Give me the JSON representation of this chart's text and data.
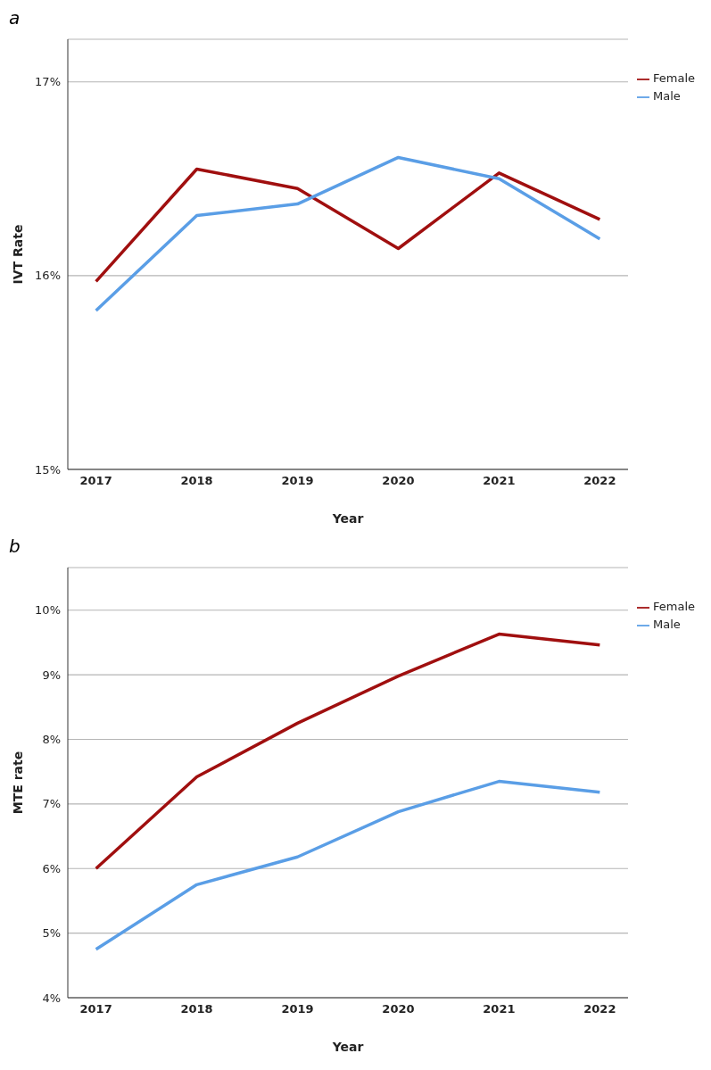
{
  "chart_data": [
    {
      "type": "line",
      "title": "a",
      "xlabel": "Year",
      "ylabel": "IVT Rate",
      "categories": [
        "2017",
        "2018",
        "2019",
        "2020",
        "2021",
        "2022"
      ],
      "series": [
        {
          "name": "Female",
          "color": "#a00f0f",
          "values": [
            15.97,
            16.55,
            16.45,
            16.14,
            16.53,
            16.29
          ]
        },
        {
          "name": "Male",
          "color": "#5a9ee6",
          "values": [
            15.82,
            16.31,
            16.37,
            16.61,
            16.5,
            16.19
          ]
        }
      ],
      "ylim": [
        15,
        17.22
      ],
      "yticks": [
        {
          "value": 15,
          "label": "15%"
        },
        {
          "value": 16,
          "label": "16%"
        },
        {
          "value": 17,
          "label": "17%"
        }
      ],
      "grid": "y",
      "legend": "top right",
      "marker": "none",
      "line_style": "solid"
    },
    {
      "type": "line",
      "title": "b",
      "xlabel": "Year",
      "ylabel": "MTE rate",
      "categories": [
        "2017",
        "2018",
        "2019",
        "2020",
        "2021",
        "2022"
      ],
      "series": [
        {
          "name": "Female",
          "color": "#a00f0f",
          "values": [
            6.0,
            7.42,
            8.25,
            8.98,
            9.63,
            9.46
          ]
        },
        {
          "name": "Male",
          "color": "#5a9ee6",
          "values": [
            4.75,
            5.75,
            6.18,
            6.88,
            7.35,
            7.18
          ]
        }
      ],
      "ylim": [
        4,
        10.66
      ],
      "yticks": [
        {
          "value": 4,
          "label": "4%"
        },
        {
          "value": 5,
          "label": "5%"
        },
        {
          "value": 6,
          "label": "6%"
        },
        {
          "value": 7,
          "label": "7%"
        },
        {
          "value": 8,
          "label": "8%"
        },
        {
          "value": 9,
          "label": "9%"
        },
        {
          "value": 10,
          "label": "10%"
        }
      ],
      "grid": "y",
      "legend": "top right",
      "marker": "none",
      "line_style": "solid"
    }
  ]
}
